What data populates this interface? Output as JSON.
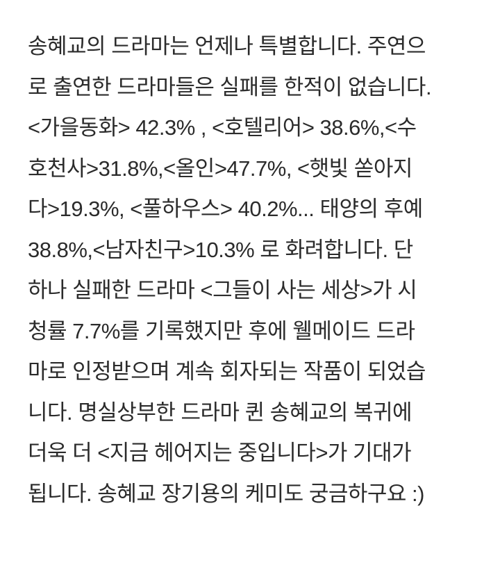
{
  "page": {
    "background_color": "#ffffff",
    "text_color": "#2b2b2b"
  },
  "article": {
    "lines": [
      "송혜교의 드라마는 언제나 특별합니다. 주연으",
      "로 출연한 드라마들은 실패를 한적이 없습니다.",
      "<가을동화> 42.3% , <호텔리어> 38.6%,<수",
      "호천사>31.8%,<올인>47.7%, <햇빛 쏟아지",
      "다>19.3%, <풀하우스> 40.2%... 태양의 후예",
      "38.8%,<남자친구>10.3% 로 화려합니다. 단",
      "하나 실패한 드라마 <그들이 사는 세상>가 시",
      "청률 7.7%를 기록했지만 후에 웰메이드 드라",
      "마로 인정받으며 계속 회자되는 작품이 되었습",
      "니다. 명실상부한 드라마 퀸 송혜교의 복귀에",
      "더욱 더 <지금 헤어지는 중입니다>가 기대가",
      "됩니다. 송혜교 장기용의 케미도 궁금하구요 :)"
    ],
    "ratings": {
      "가을동화": "42.3%",
      "호텔리어": "38.6%",
      "수호천사": "31.8%",
      "올인": "47.7%",
      "햇빛 쏟아지다": "19.3%",
      "풀하우스": "40.2%",
      "태양의 후예": "38.8%",
      "남자친구": "10.3%",
      "그들이 사는 세상": "7.7%"
    }
  }
}
